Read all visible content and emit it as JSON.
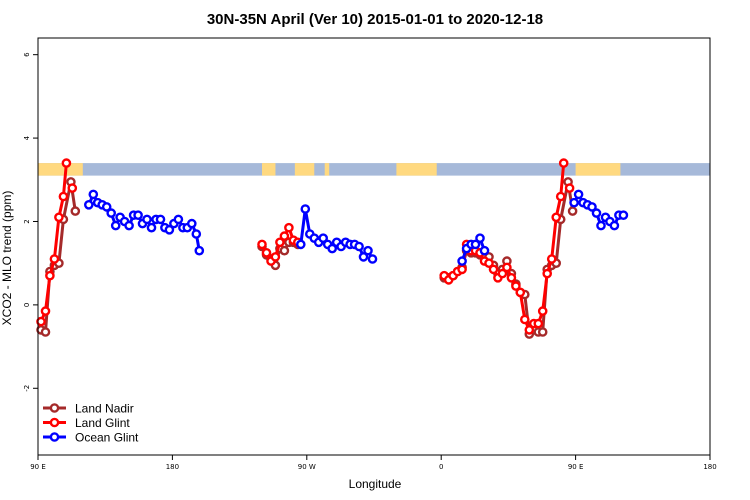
{
  "chart_data": {
    "type": "line",
    "title": "30N-35N April (Ver 10)   2015-01-01 to 2020-12-18",
    "xlabel": "Longitude",
    "ylabel": "XCO2 - MLO trend (ppm)",
    "xlim": [
      90,
      450
    ],
    "ylim": [
      -3.6,
      6.4
    ],
    "x_ticks": [
      {
        "value": 90,
        "label": "90 E"
      },
      {
        "value": 180,
        "label": "180"
      },
      {
        "value": 270,
        "label": "90 W"
      },
      {
        "value": 360,
        "label": "0"
      },
      {
        "value": 450,
        "label": "90 E"
      },
      {
        "value": 540,
        "label": "180"
      }
    ],
    "y_ticks": [
      {
        "value": -2,
        "label": "-2"
      },
      {
        "value": 0,
        "label": "0"
      },
      {
        "value": 2,
        "label": "2"
      },
      {
        "value": 4,
        "label": "4"
      },
      {
        "value": 6,
        "label": "6"
      }
    ],
    "x_range_shown": [
      90,
      540
    ],
    "land_mask": {
      "y_range": [
        3.1,
        3.4
      ],
      "ocean_color": "#a6b9d9",
      "land_color": "#ffd980",
      "land_segments": [
        [
          90,
          120
        ],
        [
          240,
          249
        ],
        [
          262,
          275
        ],
        [
          282,
          285
        ],
        [
          330,
          357
        ],
        [
          450,
          480
        ]
      ]
    },
    "series": [
      {
        "name": "Land Nadir",
        "color": "#a52a2a",
        "segments": [
          [
            [
              92,
              -0.6
            ],
            [
              95,
              -0.65
            ],
            [
              98,
              0.8
            ],
            [
              101,
              0.95
            ],
            [
              104,
              1.0
            ],
            [
              107,
              2.05
            ],
            [
              112,
              2.95
            ],
            [
              115,
              2.25
            ]
          ],
          [
            [
              240,
              1.4
            ],
            [
              243,
              1.2
            ],
            [
              246,
              1.1
            ],
            [
              249,
              0.95
            ],
            [
              252,
              1.35
            ],
            [
              255,
              1.3
            ],
            [
              258,
              1.5
            ],
            [
              261,
              1.5
            ],
            [
              264,
              1.45
            ]
          ],
          [
            [
              362,
              0.65
            ],
            [
              365,
              0.65
            ],
            [
              368,
              0.7
            ],
            [
              371,
              0.8
            ],
            [
              374,
              0.9
            ],
            [
              377,
              1.3
            ],
            [
              380,
              1.25
            ],
            [
              383,
              1.25
            ],
            [
              386,
              1.2
            ],
            [
              389,
              1.15
            ],
            [
              392,
              1.15
            ],
            [
              395,
              0.95
            ],
            [
              398,
              0.75
            ],
            [
              401,
              0.85
            ],
            [
              404,
              1.05
            ],
            [
              407,
              0.75
            ],
            [
              410,
              0.5
            ],
            [
              413,
              0.3
            ],
            [
              416,
              0.25
            ],
            [
              419,
              -0.7
            ],
            [
              422,
              -0.6
            ],
            [
              425,
              -0.65
            ],
            [
              428,
              -0.65
            ],
            [
              431,
              0.85
            ],
            [
              434,
              0.95
            ],
            [
              437,
              1.0
            ],
            [
              440,
              2.05
            ],
            [
              445,
              2.95
            ],
            [
              448,
              2.25
            ]
          ]
        ]
      },
      {
        "name": "Land Glint",
        "color": "#ff0000",
        "segments": [
          [
            [
              92,
              -0.4
            ],
            [
              95,
              -0.15
            ],
            [
              98,
              0.7
            ],
            [
              101,
              1.1
            ],
            [
              104,
              2.1
            ],
            [
              107,
              2.6
            ],
            [
              109,
              3.4
            ]
          ],
          [
            [
              113,
              2.8
            ]
          ],
          [
            [
              240,
              1.45
            ],
            [
              243,
              1.25
            ],
            [
              246,
              1.05
            ],
            [
              249,
              1.15
            ],
            [
              252,
              1.5
            ],
            [
              255,
              1.65
            ],
            [
              258,
              1.85
            ],
            [
              261,
              1.55
            ],
            [
              264,
              1.5
            ]
          ],
          [
            [
              362,
              0.7
            ],
            [
              365,
              0.6
            ],
            [
              368,
              0.7
            ],
            [
              371,
              0.8
            ],
            [
              374,
              0.85
            ],
            [
              377,
              1.45
            ],
            [
              380,
              1.3
            ],
            [
              383,
              1.3
            ],
            [
              386,
              1.25
            ],
            [
              389,
              1.05
            ],
            [
              392,
              1.0
            ],
            [
              395,
              0.85
            ],
            [
              398,
              0.65
            ],
            [
              401,
              0.75
            ],
            [
              404,
              0.9
            ],
            [
              407,
              0.65
            ],
            [
              410,
              0.45
            ],
            [
              413,
              0.3
            ],
            [
              416,
              -0.35
            ],
            [
              419,
              -0.6
            ],
            [
              422,
              -0.45
            ],
            [
              425,
              -0.45
            ],
            [
              428,
              -0.15
            ],
            [
              431,
              0.75
            ],
            [
              434,
              1.1
            ],
            [
              437,
              2.1
            ],
            [
              440,
              2.6
            ],
            [
              442,
              3.4
            ]
          ],
          [
            [
              446,
              2.8
            ]
          ]
        ]
      },
      {
        "name": "Ocean Glint",
        "color": "#0000ff",
        "segments": [
          [
            [
              124,
              2.4
            ],
            [
              127,
              2.65
            ],
            [
              130,
              2.45
            ],
            [
              133,
              2.4
            ],
            [
              136,
              2.35
            ],
            [
              139,
              2.2
            ],
            [
              142,
              1.9
            ],
            [
              145,
              2.1
            ],
            [
              148,
              2.0
            ],
            [
              151,
              1.9
            ],
            [
              154,
              2.15
            ],
            [
              157,
              2.15
            ],
            [
              160,
              1.95
            ],
            [
              163,
              2.05
            ],
            [
              166,
              1.85
            ],
            [
              169,
              2.05
            ],
            [
              172,
              2.05
            ],
            [
              175,
              1.85
            ],
            [
              178,
              1.8
            ],
            [
              181,
              1.95
            ],
            [
              184,
              2.05
            ],
            [
              187,
              1.85
            ],
            [
              190,
              1.85
            ],
            [
              193,
              1.95
            ],
            [
              196,
              1.7
            ],
            [
              198,
              1.3
            ]
          ],
          [
            [
              266,
              1.45
            ],
            [
              269,
              2.3
            ],
            [
              272,
              1.7
            ],
            [
              275,
              1.6
            ],
            [
              278,
              1.5
            ],
            [
              281,
              1.6
            ],
            [
              284,
              1.45
            ],
            [
              287,
              1.35
            ],
            [
              290,
              1.5
            ],
            [
              293,
              1.4
            ],
            [
              296,
              1.5
            ],
            [
              299,
              1.45
            ],
            [
              302,
              1.45
            ],
            [
              305,
              1.4
            ],
            [
              308,
              1.15
            ],
            [
              311,
              1.3
            ],
            [
              314,
              1.1
            ]
          ],
          [
            [
              374,
              1.05
            ],
            [
              377,
              1.35
            ],
            [
              380,
              1.45
            ],
            [
              383,
              1.45
            ],
            [
              386,
              1.6
            ],
            [
              389,
              1.3
            ]
          ],
          [
            [
              449,
              2.45
            ],
            [
              452,
              2.65
            ],
            [
              455,
              2.45
            ],
            [
              458,
              2.4
            ],
            [
              461,
              2.35
            ],
            [
              464,
              2.2
            ],
            [
              467,
              1.9
            ],
            [
              470,
              2.1
            ],
            [
              473,
              2.0
            ],
            [
              476,
              1.9
            ],
            [
              479,
              2.15
            ],
            [
              482,
              2.15
            ]
          ]
        ]
      }
    ],
    "legend": {
      "position": "bottom-left",
      "entries": [
        "Land Nadir",
        "Land Glint",
        "Ocean Glint"
      ]
    },
    "grid": false
  }
}
